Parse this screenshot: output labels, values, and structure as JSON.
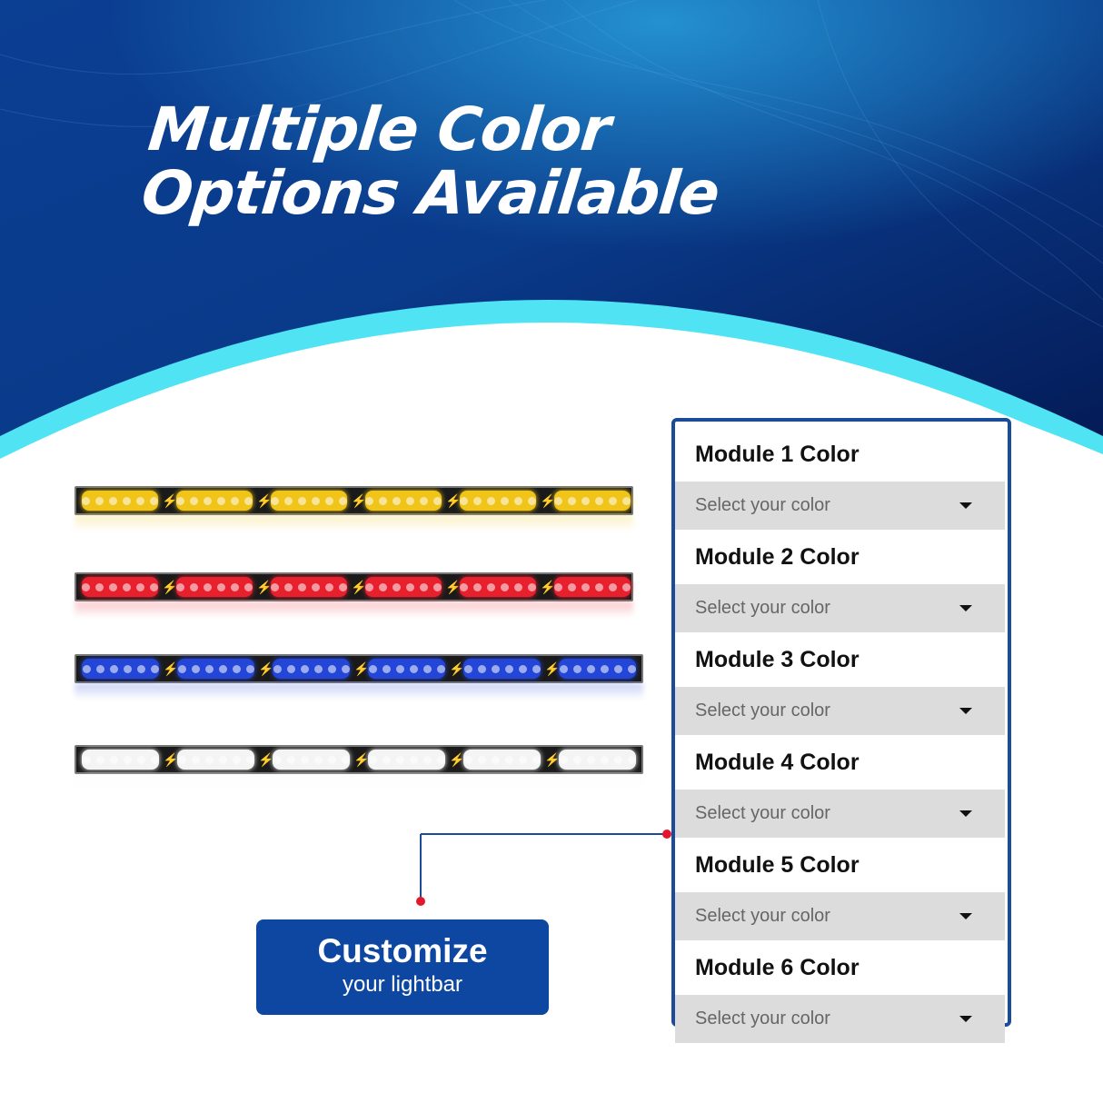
{
  "headline": {
    "line1": "Multiple Color",
    "line2": "Options Available"
  },
  "colors": {
    "brand": "#0d47a1",
    "panel_border": "#1a4c9a",
    "accent_curve": "#4fe3f3",
    "dot": "#e3192b"
  },
  "lightbars": [
    {
      "color": "yellow",
      "hex": "#f0c419"
    },
    {
      "color": "red",
      "hex": "#e8202e"
    },
    {
      "color": "blue",
      "hex": "#2346d8"
    },
    {
      "color": "white",
      "hex": "#f4f4f4"
    }
  ],
  "modules": [
    {
      "label": "Module 1 Color",
      "placeholder": "Select your color"
    },
    {
      "label": "Module 2 Color",
      "placeholder": "Select your color"
    },
    {
      "label": "Module 3 Color",
      "placeholder": "Select your color"
    },
    {
      "label": "Module 4 Color",
      "placeholder": "Select your color"
    },
    {
      "label": "Module 5 Color",
      "placeholder": "Select your color"
    },
    {
      "label": "Module 6 Color",
      "placeholder": "Select your color"
    }
  ],
  "cta": {
    "title": "Customize",
    "subtitle": "your lightbar"
  }
}
